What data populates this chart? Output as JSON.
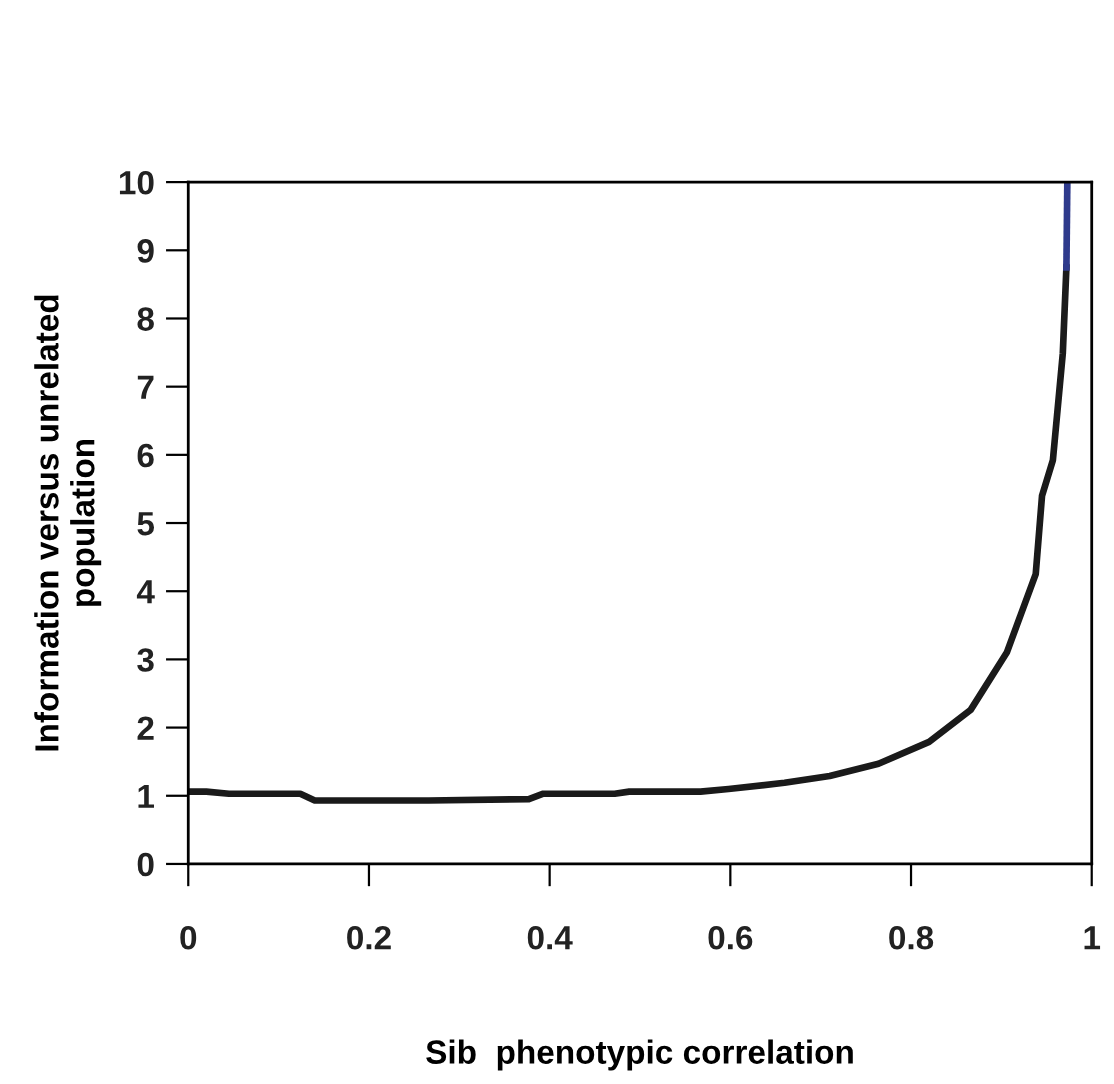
{
  "chart_data": {
    "type": "line",
    "xlabel": "Sib  phenotypic correlation",
    "ylabel": "Information versus unrelated\npopulation",
    "series": [
      {
        "color": "#1a1a1a",
        "x": [
          0,
          0.02,
          0.045,
          0.124,
          0.14,
          0.266,
          0.377,
          0.393,
          0.472,
          0.488,
          0.567,
          0.598,
          0.66,
          0.71,
          0.764,
          0.82,
          0.866,
          0.906,
          0.938,
          0.945,
          0.957,
          0.968,
          0.972
        ],
        "values": [
          1.06,
          1.06,
          1.03,
          1.03,
          0.93,
          0.93,
          0.95,
          1.03,
          1.03,
          1.06,
          1.06,
          1.1,
          1.19,
          1.29,
          1.47,
          1.79,
          2.26,
          3.1,
          4.25,
          5.4,
          5.92,
          7.49,
          8.75
        ]
      },
      {
        "color": "#2e3a8c",
        "x": [
          0.972,
          0.973
        ],
        "values": [
          8.75,
          10
        ]
      }
    ],
    "xlim": [
      0,
      1
    ],
    "xticks": [
      0,
      0.2,
      0.4,
      0.6,
      0.8,
      1
    ],
    "ylim": [
      0,
      10
    ],
    "yticks": [
      0,
      1,
      2,
      3,
      4,
      5,
      6,
      7,
      8,
      9,
      10
    ],
    "grid": false,
    "legend": false,
    "marker": "none",
    "line_style": "solid"
  }
}
